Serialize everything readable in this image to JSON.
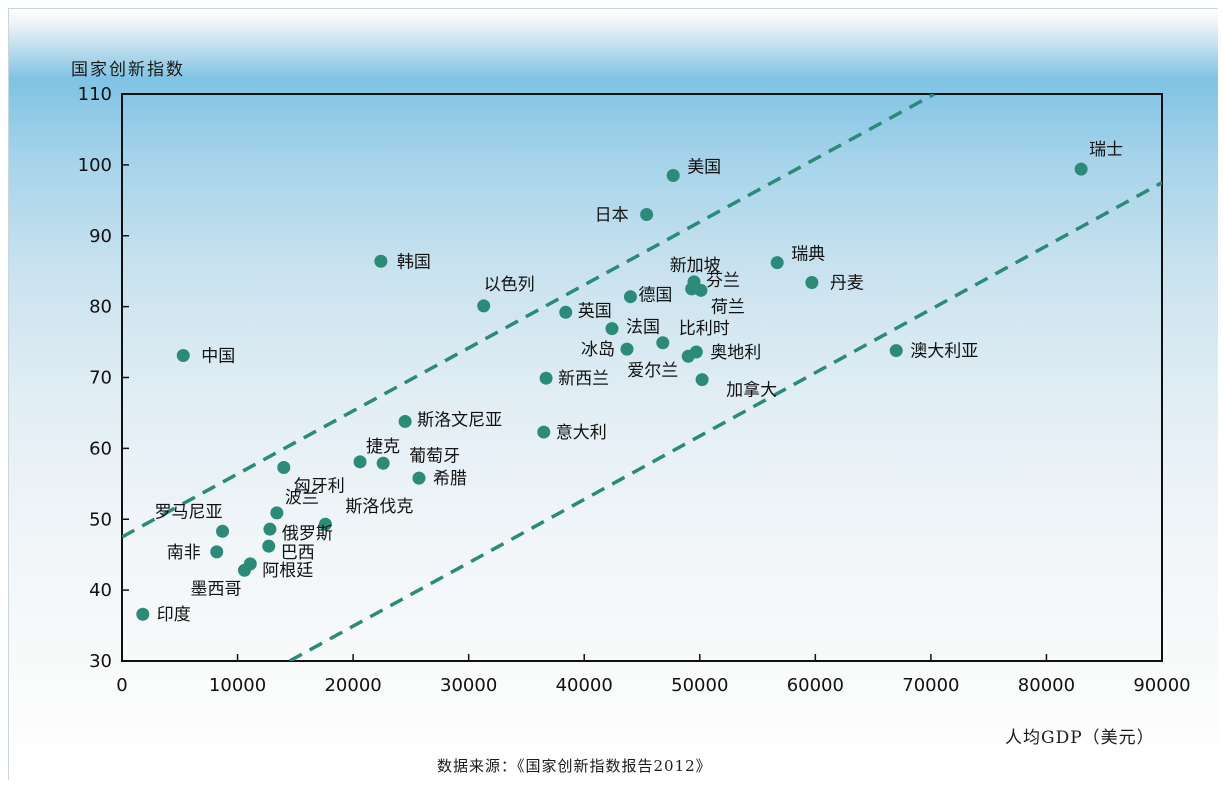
{
  "chart_data": {
    "type": "scatter",
    "title": "",
    "ylabel": "国家创新指数",
    "xlabel": "人均GDP（美元）",
    "source": "数据来源：《国家创新指数报告2012》",
    "xlim": [
      0,
      90000
    ],
    "ylim": [
      30,
      110
    ],
    "x_ticks": [
      0,
      10000,
      20000,
      30000,
      40000,
      50000,
      60000,
      70000,
      80000,
      90000
    ],
    "y_ticks": [
      30,
      40,
      50,
      60,
      70,
      80,
      90,
      100,
      110
    ],
    "grid": false,
    "colors": {
      "point": "#2b8a78",
      "dashed_line": "#2b8a78",
      "axis": "#111111"
    },
    "points": [
      {
        "name": "瑞士",
        "x": 83000,
        "y": 99.4
      },
      {
        "name": "美国",
        "x": 47700,
        "y": 98.5
      },
      {
        "name": "日本",
        "x": 45400,
        "y": 93.0
      },
      {
        "name": "韩国",
        "x": 22400,
        "y": 86.4
      },
      {
        "name": "瑞典",
        "x": 56700,
        "y": 86.2
      },
      {
        "name": "新加坡",
        "x": 49300,
        "y": 82.5
      },
      {
        "name": "芬兰",
        "x": 49500,
        "y": 83.5
      },
      {
        "name": "丹麦",
        "x": 59700,
        "y": 83.4
      },
      {
        "name": "德国",
        "x": 44000,
        "y": 81.4
      },
      {
        "name": "荷兰",
        "x": 50100,
        "y": 82.3
      },
      {
        "name": "以色列",
        "x": 31300,
        "y": 80.1
      },
      {
        "name": "英国",
        "x": 38400,
        "y": 79.2
      },
      {
        "name": "法国",
        "x": 42400,
        "y": 76.9
      },
      {
        "name": "比利时",
        "x": 46800,
        "y": 74.9
      },
      {
        "name": "冰岛",
        "x": 43700,
        "y": 74.0
      },
      {
        "name": "奥地利",
        "x": 49700,
        "y": 73.6
      },
      {
        "name": "爱尔兰",
        "x": 49000,
        "y": 73.0
      },
      {
        "name": "中国",
        "x": 5300,
        "y": 73.1
      },
      {
        "name": "澳大利亚",
        "x": 67000,
        "y": 73.8
      },
      {
        "name": "新西兰",
        "x": 36700,
        "y": 69.9
      },
      {
        "name": "加拿大",
        "x": 50200,
        "y": 69.7
      },
      {
        "name": "斯洛文尼亚",
        "x": 24500,
        "y": 63.8
      },
      {
        "name": "意大利",
        "x": 36500,
        "y": 62.3
      },
      {
        "name": "捷克",
        "x": 20600,
        "y": 58.1
      },
      {
        "name": "葡萄牙",
        "x": 22600,
        "y": 57.9
      },
      {
        "name": "匈牙利",
        "x": 14000,
        "y": 57.3
      },
      {
        "name": "希腊",
        "x": 25700,
        "y": 55.8
      },
      {
        "name": "波兰",
        "x": 13400,
        "y": 50.9
      },
      {
        "name": "斯洛伐克",
        "x": 17600,
        "y": 49.3
      },
      {
        "name": "罗马尼亚",
        "x": 8700,
        "y": 48.3
      },
      {
        "name": "俄罗斯",
        "x": 12800,
        "y": 48.6
      },
      {
        "name": "南非",
        "x": 8200,
        "y": 45.4
      },
      {
        "name": "巴西",
        "x": 12700,
        "y": 46.2
      },
      {
        "name": "阿根廷",
        "x": 11100,
        "y": 43.7
      },
      {
        "name": "墨西哥",
        "x": 10600,
        "y": 42.8
      },
      {
        "name": "印度",
        "x": 1800,
        "y": 36.6
      }
    ],
    "reference_lines": [
      {
        "style": "dashed",
        "from": [
          0,
          47.5
        ],
        "to": [
          70300,
          110
        ]
      },
      {
        "style": "dashed",
        "from": [
          14500,
          30
        ],
        "to": [
          90000,
          97.5
        ]
      }
    ]
  }
}
